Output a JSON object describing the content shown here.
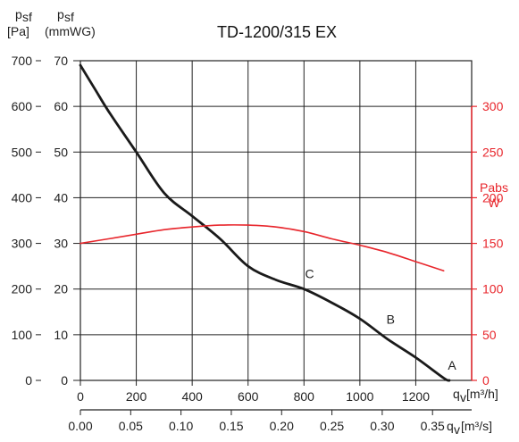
{
  "chart_data": {
    "type": "line",
    "title": "TD-1200/315 EX",
    "y_left_outer": {
      "label_main": "p",
      "label_sub": "sf",
      "unit": "[Pa]",
      "range": [
        0,
        700
      ],
      "ticks": [
        "0",
        "100",
        "200",
        "300",
        "400",
        "500",
        "600",
        "700"
      ]
    },
    "y_left_inner": {
      "label_main": "p",
      "label_sub": "sf",
      "unit": "(mmWG)",
      "range": [
        0,
        70
      ],
      "ticks": [
        "0",
        "10",
        "20",
        "30",
        "40",
        "50",
        "60",
        "70"
      ]
    },
    "y_right": {
      "label_line1": "Pabs",
      "label_line2": "W",
      "range": [
        0,
        300
      ],
      "ticks": [
        "0",
        "50",
        "100",
        "150",
        "200",
        "250",
        "300"
      ],
      "color": "#e8262c"
    },
    "x_top": {
      "label_main": "q",
      "label_sub": "v",
      "unit": "[m³/h]",
      "range": [
        0,
        1400
      ],
      "ticks": [
        "0",
        "200",
        "400",
        "600",
        "800",
        "1000",
        "1200"
      ]
    },
    "x_bottom": {
      "label_main": "q",
      "label_sub": "v",
      "unit": "[m³/s]",
      "ticks": [
        "0.00",
        "0.05",
        "0.10",
        "0.15",
        "0.20",
        "0.25",
        "0.30",
        "0.35"
      ],
      "tick_values": [
        0,
        180,
        360,
        540,
        720,
        900,
        1080,
        1260
      ]
    },
    "grid": true,
    "series": [
      {
        "axis": "left_pa",
        "color": "#1a1a1a",
        "points": [
          [
            0,
            690
          ],
          [
            50,
            640
          ],
          [
            100,
            590
          ],
          [
            200,
            500
          ],
          [
            300,
            410
          ],
          [
            400,
            360
          ],
          [
            500,
            310
          ],
          [
            600,
            250
          ],
          [
            700,
            220
          ],
          [
            800,
            200
          ],
          [
            900,
            170
          ],
          [
            1000,
            135
          ],
          [
            1100,
            90
          ],
          [
            1200,
            50
          ],
          [
            1300,
            5
          ],
          [
            1320,
            0
          ]
        ]
      },
      {
        "axis": "right_w",
        "color": "#e8262c",
        "points": [
          [
            0,
            150
          ],
          [
            100,
            155
          ],
          [
            200,
            160
          ],
          [
            300,
            165
          ],
          [
            400,
            168
          ],
          [
            500,
            170
          ],
          [
            600,
            170
          ],
          [
            700,
            168
          ],
          [
            800,
            163
          ],
          [
            900,
            155
          ],
          [
            1000,
            148
          ],
          [
            1100,
            140
          ],
          [
            1200,
            130
          ],
          [
            1300,
            120
          ]
        ]
      }
    ],
    "annotations": [
      {
        "text": "A",
        "x": 1330,
        "y": 20
      },
      {
        "text": "B",
        "x": 1110,
        "y": 120
      },
      {
        "text": "C",
        "x": 820,
        "y": 220
      }
    ]
  }
}
